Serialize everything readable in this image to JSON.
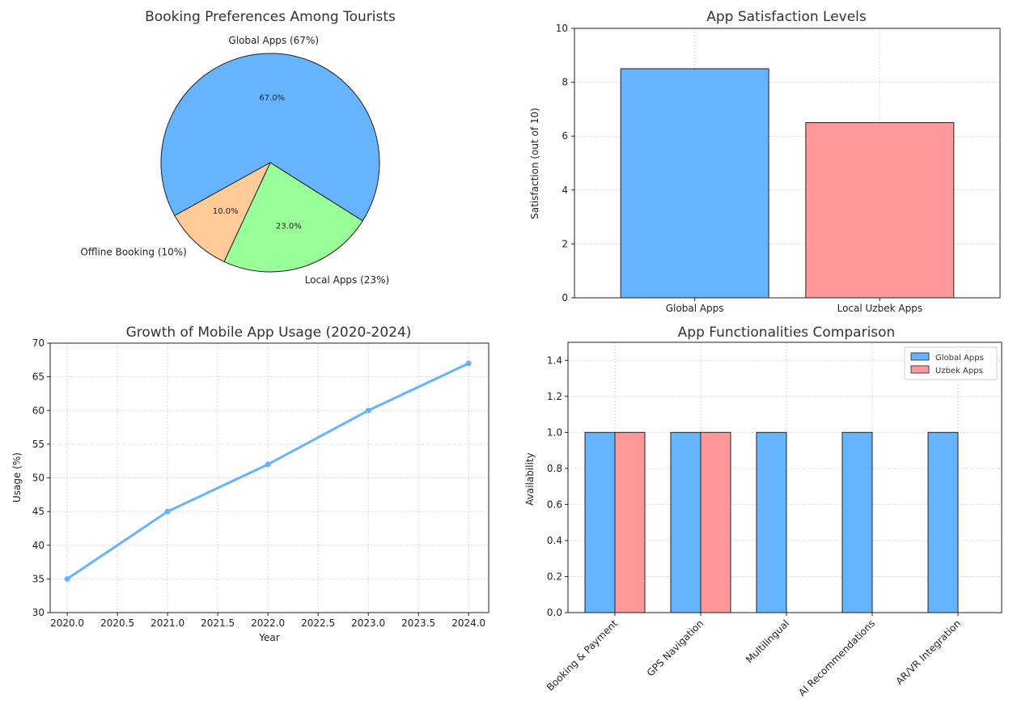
{
  "chart_data": [
    {
      "type": "pie",
      "title": "Booking Preferences Among Tourists",
      "slices": [
        {
          "label": "Global Apps (67%)",
          "value": 67,
          "pct_label": "67.0%",
          "color": "#66b3ff"
        },
        {
          "label": "Local Apps (23%)",
          "value": 23,
          "pct_label": "23.0%",
          "color": "#99ff99"
        },
        {
          "label": "Offline Booking (10%)",
          "value": 10,
          "pct_label": "10.0%",
          "color": "#ffcc99"
        }
      ]
    },
    {
      "type": "bar",
      "title": "App Satisfaction Levels",
      "xlabel": "",
      "ylabel": "Satisfaction (out of 10)",
      "categories": [
        "Global Apps",
        "Local Uzbek Apps"
      ],
      "values": [
        8.5,
        6.5
      ],
      "colors": [
        "#66b3ff",
        "#ff9999"
      ],
      "ylim": [
        0,
        10
      ],
      "yticks": [
        0,
        2,
        4,
        6,
        8,
        10
      ],
      "grid": true
    },
    {
      "type": "line",
      "title": "Growth of Mobile App Usage (2020-2024)",
      "xlabel": "Year",
      "ylabel": "Usage (%)",
      "x": [
        2020,
        2021,
        2022,
        2023,
        2024
      ],
      "y": [
        35,
        45,
        52,
        60,
        67
      ],
      "color": "#66b3ff",
      "xlim": [
        2019.83,
        2024.2
      ],
      "ylim": [
        30,
        70
      ],
      "xticks": [
        "2020.0",
        "2020.5",
        "2021.0",
        "2021.5",
        "2022.0",
        "2022.5",
        "2023.0",
        "2023.5",
        "2024.0"
      ],
      "yticks": [
        30,
        35,
        40,
        45,
        50,
        55,
        60,
        65,
        70
      ],
      "grid": true
    },
    {
      "type": "bar",
      "title": "App Functionalities Comparison",
      "xlabel": "",
      "ylabel": "Availability",
      "categories": [
        "Booking & Payment",
        "GPS Navigation",
        "Multilingual",
        "AI Recommendations",
        "AR/VR Integration"
      ],
      "series": [
        {
          "name": "Global Apps",
          "values": [
            1,
            1,
            1,
            1,
            1
          ],
          "color": "#66b3ff"
        },
        {
          "name": "Uzbek Apps",
          "values": [
            1,
            1,
            0,
            0,
            0
          ],
          "color": "#ff9999"
        }
      ],
      "ylim": [
        0,
        1.5
      ],
      "yticks": [
        "0.0",
        "0.2",
        "0.4",
        "0.6",
        "0.8",
        "1.0",
        "1.2",
        "1.4"
      ],
      "legend": "top-right",
      "grid": true
    }
  ]
}
